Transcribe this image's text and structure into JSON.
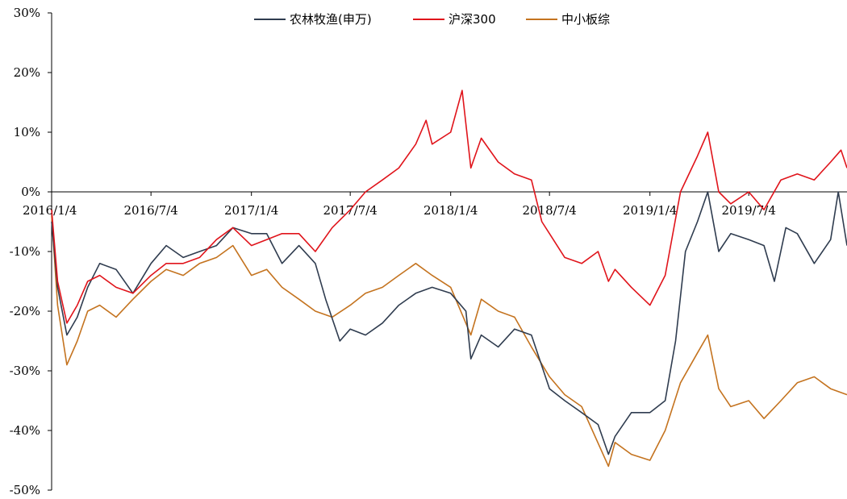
{
  "chart_data": {
    "type": "line",
    "title": "",
    "xlabel": "",
    "ylabel": "",
    "x_range": [
      "2016-01-04",
      "2019-12-31"
    ],
    "ylim": [
      -50,
      30
    ],
    "y_unit": "%",
    "y_ticks": [
      {
        "value": 30,
        "label": "30%"
      },
      {
        "value": 20,
        "label": "20%"
      },
      {
        "value": 10,
        "label": "10%"
      },
      {
        "value": 0,
        "label": "0%"
      },
      {
        "value": -10,
        "label": "-10%"
      },
      {
        "value": -20,
        "label": "-20%"
      },
      {
        "value": -30,
        "label": "-30%"
      },
      {
        "value": -40,
        "label": "-40%"
      },
      {
        "value": -50,
        "label": "-50%"
      }
    ],
    "x_ticks": [
      {
        "date": "2016-01-04",
        "label": "2016/1/4"
      },
      {
        "date": "2016-07-04",
        "label": "2016/7/4"
      },
      {
        "date": "2017-01-04",
        "label": "2017/1/4"
      },
      {
        "date": "2017-07-04",
        "label": "2017/7/4"
      },
      {
        "date": "2018-01-04",
        "label": "2018/1/4"
      },
      {
        "date": "2018-07-04",
        "label": "2018/7/4"
      },
      {
        "date": "2019-01-04",
        "label": "2019/1/4"
      },
      {
        "date": "2019-07-04",
        "label": "2019/7/4"
      }
    ],
    "grid": false,
    "zero_line": true,
    "legend_position": "top-center",
    "series": [
      {
        "name": "农林牧渔(申万)",
        "color": "#2f3c4f",
        "points": [
          [
            "2016-01-04",
            -5
          ],
          [
            "2016-01-15",
            -16
          ],
          [
            "2016-02-01",
            -24
          ],
          [
            "2016-02-20",
            -21
          ],
          [
            "2016-03-10",
            -16
          ],
          [
            "2016-04-01",
            -12
          ],
          [
            "2016-05-01",
            -13
          ],
          [
            "2016-06-01",
            -17
          ],
          [
            "2016-07-04",
            -12
          ],
          [
            "2016-08-01",
            -9
          ],
          [
            "2016-09-01",
            -11
          ],
          [
            "2016-10-01",
            -10
          ],
          [
            "2016-11-01",
            -9
          ],
          [
            "2016-12-01",
            -6
          ],
          [
            "2017-01-04",
            -7
          ],
          [
            "2017-02-01",
            -7
          ],
          [
            "2017-03-01",
            -12
          ],
          [
            "2017-04-01",
            -9
          ],
          [
            "2017-05-01",
            -12
          ],
          [
            "2017-05-20",
            -18
          ],
          [
            "2017-06-15",
            -25
          ],
          [
            "2017-07-04",
            -23
          ],
          [
            "2017-08-01",
            -24
          ],
          [
            "2017-09-01",
            -22
          ],
          [
            "2017-10-01",
            -19
          ],
          [
            "2017-11-01",
            -17
          ],
          [
            "2017-12-01",
            -16
          ],
          [
            "2018-01-04",
            -17
          ],
          [
            "2018-02-01",
            -20
          ],
          [
            "2018-02-10",
            -28
          ],
          [
            "2018-03-01",
            -24
          ],
          [
            "2018-04-01",
            -26
          ],
          [
            "2018-05-01",
            -23
          ],
          [
            "2018-06-01",
            -24
          ],
          [
            "2018-07-04",
            -33
          ],
          [
            "2018-08-01",
            -35
          ],
          [
            "2018-09-01",
            -37
          ],
          [
            "2018-10-01",
            -39
          ],
          [
            "2018-10-20",
            -44
          ],
          [
            "2018-11-01",
            -41
          ],
          [
            "2018-12-01",
            -37
          ],
          [
            "2019-01-04",
            -37
          ],
          [
            "2019-02-01",
            -35
          ],
          [
            "2019-02-20",
            -25
          ],
          [
            "2019-03-10",
            -10
          ],
          [
            "2019-04-01",
            -5
          ],
          [
            "2019-04-20",
            0
          ],
          [
            "2019-05-10",
            -10
          ],
          [
            "2019-06-01",
            -7
          ],
          [
            "2019-07-04",
            -8
          ],
          [
            "2019-08-01",
            -9
          ],
          [
            "2019-08-20",
            -15
          ],
          [
            "2019-09-10",
            -6
          ],
          [
            "2019-10-01",
            -7
          ],
          [
            "2019-11-01",
            -12
          ],
          [
            "2019-12-01",
            -8
          ],
          [
            "2019-12-15",
            0
          ],
          [
            "2019-12-31",
            -9
          ]
        ]
      },
      {
        "name": "沪深300",
        "color": "#e0141b",
        "points": [
          [
            "2016-01-04",
            -3
          ],
          [
            "2016-01-15",
            -15
          ],
          [
            "2016-02-01",
            -22
          ],
          [
            "2016-02-20",
            -19
          ],
          [
            "2016-03-10",
            -15
          ],
          [
            "2016-04-01",
            -14
          ],
          [
            "2016-05-01",
            -16
          ],
          [
            "2016-06-01",
            -17
          ],
          [
            "2016-07-04",
            -14
          ],
          [
            "2016-08-01",
            -12
          ],
          [
            "2016-09-01",
            -12
          ],
          [
            "2016-10-01",
            -11
          ],
          [
            "2016-11-01",
            -8
          ],
          [
            "2016-12-01",
            -6
          ],
          [
            "2017-01-04",
            -9
          ],
          [
            "2017-02-01",
            -8
          ],
          [
            "2017-03-01",
            -7
          ],
          [
            "2017-04-01",
            -7
          ],
          [
            "2017-05-01",
            -10
          ],
          [
            "2017-06-01",
            -6
          ],
          [
            "2017-07-04",
            -3
          ],
          [
            "2017-08-01",
            0
          ],
          [
            "2017-09-01",
            2
          ],
          [
            "2017-10-01",
            4
          ],
          [
            "2017-11-01",
            8
          ],
          [
            "2017-11-20",
            12
          ],
          [
            "2017-12-01",
            8
          ],
          [
            "2018-01-04",
            10
          ],
          [
            "2018-01-25",
            17
          ],
          [
            "2018-02-10",
            4
          ],
          [
            "2018-03-01",
            9
          ],
          [
            "2018-04-01",
            5
          ],
          [
            "2018-05-01",
            3
          ],
          [
            "2018-06-01",
            2
          ],
          [
            "2018-06-20",
            -5
          ],
          [
            "2018-07-04",
            -7
          ],
          [
            "2018-08-01",
            -11
          ],
          [
            "2018-09-01",
            -12
          ],
          [
            "2018-10-01",
            -10
          ],
          [
            "2018-10-20",
            -15
          ],
          [
            "2018-11-01",
            -13
          ],
          [
            "2018-12-01",
            -16
          ],
          [
            "2019-01-04",
            -19
          ],
          [
            "2019-02-01",
            -14
          ],
          [
            "2019-03-01",
            0
          ],
          [
            "2019-04-01",
            6
          ],
          [
            "2019-04-20",
            10
          ],
          [
            "2019-05-10",
            0
          ],
          [
            "2019-06-01",
            -2
          ],
          [
            "2019-07-04",
            0
          ],
          [
            "2019-08-01",
            -3
          ],
          [
            "2019-09-01",
            2
          ],
          [
            "2019-10-01",
            3
          ],
          [
            "2019-11-01",
            2
          ],
          [
            "2019-12-01",
            5
          ],
          [
            "2019-12-20",
            7
          ],
          [
            "2019-12-31",
            4
          ]
        ]
      },
      {
        "name": "中小板综",
        "color": "#c4731f",
        "points": [
          [
            "2016-01-04",
            -4
          ],
          [
            "2016-01-15",
            -19
          ],
          [
            "2016-02-01",
            -29
          ],
          [
            "2016-02-20",
            -25
          ],
          [
            "2016-03-10",
            -20
          ],
          [
            "2016-04-01",
            -19
          ],
          [
            "2016-05-01",
            -21
          ],
          [
            "2016-06-01",
            -18
          ],
          [
            "2016-07-04",
            -15
          ],
          [
            "2016-08-01",
            -13
          ],
          [
            "2016-09-01",
            -14
          ],
          [
            "2016-10-01",
            -12
          ],
          [
            "2016-11-01",
            -11
          ],
          [
            "2016-12-01",
            -9
          ],
          [
            "2017-01-04",
            -14
          ],
          [
            "2017-02-01",
            -13
          ],
          [
            "2017-03-01",
            -16
          ],
          [
            "2017-04-01",
            -18
          ],
          [
            "2017-05-01",
            -20
          ],
          [
            "2017-06-01",
            -21
          ],
          [
            "2017-07-04",
            -19
          ],
          [
            "2017-08-01",
            -17
          ],
          [
            "2017-09-01",
            -16
          ],
          [
            "2017-10-01",
            -14
          ],
          [
            "2017-11-01",
            -12
          ],
          [
            "2017-12-01",
            -14
          ],
          [
            "2018-01-04",
            -16
          ],
          [
            "2018-02-10",
            -24
          ],
          [
            "2018-03-01",
            -18
          ],
          [
            "2018-04-01",
            -20
          ],
          [
            "2018-05-01",
            -21
          ],
          [
            "2018-06-01",
            -26
          ],
          [
            "2018-07-04",
            -31
          ],
          [
            "2018-08-01",
            -34
          ],
          [
            "2018-09-01",
            -36
          ],
          [
            "2018-10-20",
            -46
          ],
          [
            "2018-11-01",
            -42
          ],
          [
            "2018-12-01",
            -44
          ],
          [
            "2019-01-04",
            -45
          ],
          [
            "2019-02-01",
            -40
          ],
          [
            "2019-03-01",
            -32
          ],
          [
            "2019-04-01",
            -27
          ],
          [
            "2019-04-20",
            -24
          ],
          [
            "2019-05-10",
            -33
          ],
          [
            "2019-06-01",
            -36
          ],
          [
            "2019-07-04",
            -35
          ],
          [
            "2019-08-01",
            -38
          ],
          [
            "2019-09-01",
            -35
          ],
          [
            "2019-10-01",
            -32
          ],
          [
            "2019-11-01",
            -31
          ],
          [
            "2019-12-01",
            -33
          ],
          [
            "2019-12-31",
            -34
          ]
        ]
      }
    ]
  }
}
